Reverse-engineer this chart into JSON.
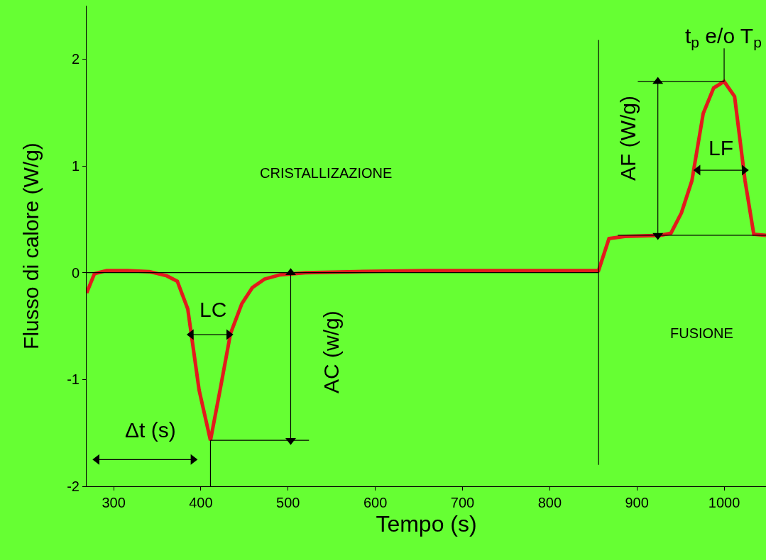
{
  "chart_data": {
    "type": "line",
    "xlabel": "Tempo (s)",
    "ylabel": "Flusso di calore (W/g)",
    "xlim": [
      269,
      1048
    ],
    "xticks": [
      300,
      400,
      500,
      600,
      700,
      800,
      900,
      1000
    ],
    "ylim": [
      -2,
      2.5
    ],
    "yticks": [
      -2,
      -1,
      0,
      1,
      2
    ],
    "grid": false,
    "series": [
      {
        "color": "#e31a1c",
        "x": [
          269,
          278,
          292,
          316,
          341,
          361,
          373,
          385,
          398,
          411,
          422,
          434,
          447,
          459,
          473,
          491,
          520,
          577,
          658,
          856,
          868,
          886,
          927,
          939,
          951,
          963,
          976,
          988,
          1000,
          1012,
          1024,
          1034,
          1048
        ],
        "values": [
          -0.19,
          -0.01,
          0.02,
          0.02,
          0.01,
          -0.03,
          -0.08,
          -0.34,
          -1.1,
          -1.57,
          -1.1,
          -0.57,
          -0.29,
          -0.14,
          -0.06,
          -0.02,
          0,
          0.01,
          0.02,
          0.02,
          0.32,
          0.34,
          0.35,
          0.37,
          0.56,
          0.86,
          1.49,
          1.73,
          1.79,
          1.65,
          0.86,
          0.36,
          0.35
        ]
      },
      {
        "color": "#000000",
        "x": [
          269,
          856
        ],
        "values": [
          0,
          0
        ]
      },
      {
        "color": "#000000",
        "x": [
          856,
          856
        ],
        "values": [
          2.18,
          -1.8
        ]
      },
      {
        "color": "#000000",
        "x": [
          411,
          524
        ],
        "values": [
          -1.57,
          -1.57
        ]
      },
      {
        "color": "#000000",
        "x": [
          411,
          411
        ],
        "values": [
          -1.57,
          -2
        ]
      },
      {
        "color": "#000000",
        "x": [
          901,
          1000
        ],
        "values": [
          1.79,
          1.79
        ]
      },
      {
        "color": "#000000",
        "x": [
          1000,
          1000
        ],
        "values": [
          1.79,
          2.1
        ]
      },
      {
        "color": "#000000",
        "x": [
          878,
          1048
        ],
        "values": [
          0.35,
          0.35
        ]
      },
      {
        "color": "#000000",
        "marker": "triangle",
        "x": [
          503,
          503
        ],
        "values": [
          0,
          -1.57
        ]
      },
      {
        "color": "#000000",
        "marker": "triangle",
        "x": [
          924,
          924
        ],
        "values": [
          0.35,
          1.79
        ]
      },
      {
        "color": "#000000",
        "marker": "triangle",
        "x": [
          389,
          432
        ],
        "values": [
          -0.58,
          -0.58
        ]
      },
      {
        "color": "#000000",
        "marker": "triangle",
        "x": [
          970,
          1023
        ],
        "values": [
          0.96,
          0.96
        ]
      },
      {
        "color": "#000000",
        "marker": "triangle",
        "x": [
          281,
          391
        ],
        "values": [
          -1.75,
          -1.75
        ]
      }
    ],
    "annotations": [
      "CRISTALLIZAZIONE",
      "FUSIONE",
      "LC",
      "AC (w/g)",
      "AF (W/g)",
      "LF",
      "Δt (s)",
      "t$_{p}$ e/o T$_{p}$"
    ]
  }
}
